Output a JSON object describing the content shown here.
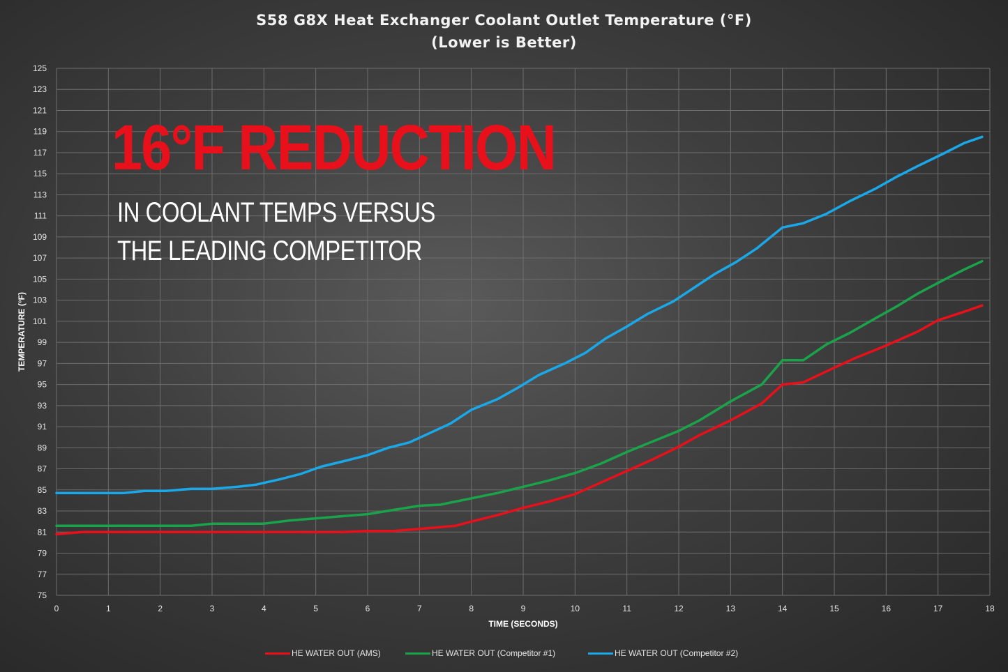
{
  "chart_data": {
    "type": "line",
    "title": "S58 G8X Heat Exchanger Coolant Outlet Temperature (°F)",
    "subtitle": "(Lower is Better)",
    "xlabel": "TIME (SECONDS)",
    "ylabel": "TEMPERATURE (°F)",
    "xlim": [
      0,
      18
    ],
    "ylim": [
      75,
      125
    ],
    "x_ticks": [
      "0",
      "1",
      "2",
      "3",
      "4",
      "5",
      "6",
      "7",
      "8",
      "9",
      "10",
      "11",
      "12",
      "13",
      "14",
      "15",
      "16",
      "17",
      "18"
    ],
    "y_ticks": [
      "75",
      "77",
      "79",
      "81",
      "83",
      "85",
      "87",
      "89",
      "91",
      "93",
      "95",
      "97",
      "99",
      "101",
      "103",
      "105",
      "107",
      "109",
      "111",
      "113",
      "115",
      "117",
      "119",
      "121",
      "123",
      "125"
    ],
    "grid": true,
    "legend_position": "bottom",
    "annotation": {
      "headline": "16°F REDUCTION",
      "line1": "IN COOLANT TEMPS VERSUS",
      "line2": "THE LEADING COMPETITOR"
    },
    "series": [
      {
        "name": "HE WATER OUT (AMS)",
        "color": "#e8101a",
        "points": [
          [
            0,
            80.8
          ],
          [
            0.5,
            81
          ],
          [
            1,
            81
          ],
          [
            2,
            81
          ],
          [
            3,
            81
          ],
          [
            4,
            81
          ],
          [
            5,
            81
          ],
          [
            5.5,
            81
          ],
          [
            6,
            81.1
          ],
          [
            6.5,
            81.1
          ],
          [
            7,
            81.3
          ],
          [
            7.7,
            81.6
          ],
          [
            8,
            82
          ],
          [
            8.5,
            82.6
          ],
          [
            9,
            83.3
          ],
          [
            9.5,
            83.9
          ],
          [
            10,
            84.6
          ],
          [
            10.5,
            85.7
          ],
          [
            11,
            86.8
          ],
          [
            11.5,
            87.9
          ],
          [
            12,
            89.1
          ],
          [
            12.4,
            90.2
          ],
          [
            13,
            91.6
          ],
          [
            13.6,
            93.2
          ],
          [
            14,
            95
          ],
          [
            14.4,
            95.2
          ],
          [
            15,
            96.6
          ],
          [
            15.4,
            97.5
          ],
          [
            16,
            98.7
          ],
          [
            16.6,
            100
          ],
          [
            17,
            101.1
          ],
          [
            17.5,
            101.9
          ],
          [
            17.85,
            102.5
          ]
        ]
      },
      {
        "name": "HE WATER OUT (Competitor #1)",
        "color": "#1aa34a",
        "points": [
          [
            0,
            81.6
          ],
          [
            1,
            81.6
          ],
          [
            2,
            81.6
          ],
          [
            2.6,
            81.6
          ],
          [
            3,
            81.8
          ],
          [
            4,
            81.8
          ],
          [
            4.5,
            82.1
          ],
          [
            5,
            82.3
          ],
          [
            6,
            82.7
          ],
          [
            6.5,
            83.1
          ],
          [
            7,
            83.5
          ],
          [
            7.4,
            83.6
          ],
          [
            8,
            84.2
          ],
          [
            8.5,
            84.7
          ],
          [
            9,
            85.3
          ],
          [
            9.5,
            85.9
          ],
          [
            10,
            86.6
          ],
          [
            10.5,
            87.5
          ],
          [
            11,
            88.6
          ],
          [
            11.5,
            89.6
          ],
          [
            12,
            90.6
          ],
          [
            12.4,
            91.6
          ],
          [
            13,
            93.4
          ],
          [
            13.6,
            95
          ],
          [
            14,
            97.3
          ],
          [
            14.4,
            97.3
          ],
          [
            14.85,
            98.8
          ],
          [
            15.3,
            99.9
          ],
          [
            15.8,
            101.3
          ],
          [
            16.2,
            102.4
          ],
          [
            16.6,
            103.6
          ],
          [
            17.1,
            104.9
          ],
          [
            17.5,
            105.9
          ],
          [
            17.85,
            106.7
          ]
        ]
      },
      {
        "name": "HE WATER OUT (Competitor #2)",
        "color": "#1aa8e8",
        "points": [
          [
            0,
            84.7
          ],
          [
            0.5,
            84.7
          ],
          [
            1.3,
            84.7
          ],
          [
            1.7,
            84.9
          ],
          [
            2.1,
            84.9
          ],
          [
            2.6,
            85.1
          ],
          [
            3,
            85.1
          ],
          [
            3.5,
            85.3
          ],
          [
            3.85,
            85.5
          ],
          [
            4.3,
            86
          ],
          [
            4.7,
            86.5
          ],
          [
            5.1,
            87.2
          ],
          [
            5.6,
            87.8
          ],
          [
            6,
            88.3
          ],
          [
            6.4,
            89
          ],
          [
            6.8,
            89.5
          ],
          [
            7.2,
            90.4
          ],
          [
            7.6,
            91.3
          ],
          [
            8,
            92.6
          ],
          [
            8.5,
            93.6
          ],
          [
            8.9,
            94.7
          ],
          [
            9.3,
            95.9
          ],
          [
            9.8,
            97
          ],
          [
            10.2,
            98
          ],
          [
            10.6,
            99.4
          ],
          [
            11,
            100.5
          ],
          [
            11.4,
            101.7
          ],
          [
            11.9,
            102.9
          ],
          [
            12.3,
            104.2
          ],
          [
            12.7,
            105.5
          ],
          [
            13.1,
            106.6
          ],
          [
            13.5,
            107.9
          ],
          [
            14,
            109.9
          ],
          [
            14.4,
            110.3
          ],
          [
            14.85,
            111.2
          ],
          [
            15.3,
            112.4
          ],
          [
            15.8,
            113.6
          ],
          [
            16.2,
            114.7
          ],
          [
            16.6,
            115.7
          ],
          [
            17.1,
            116.9
          ],
          [
            17.5,
            117.9
          ],
          [
            17.85,
            118.5
          ]
        ]
      }
    ]
  }
}
